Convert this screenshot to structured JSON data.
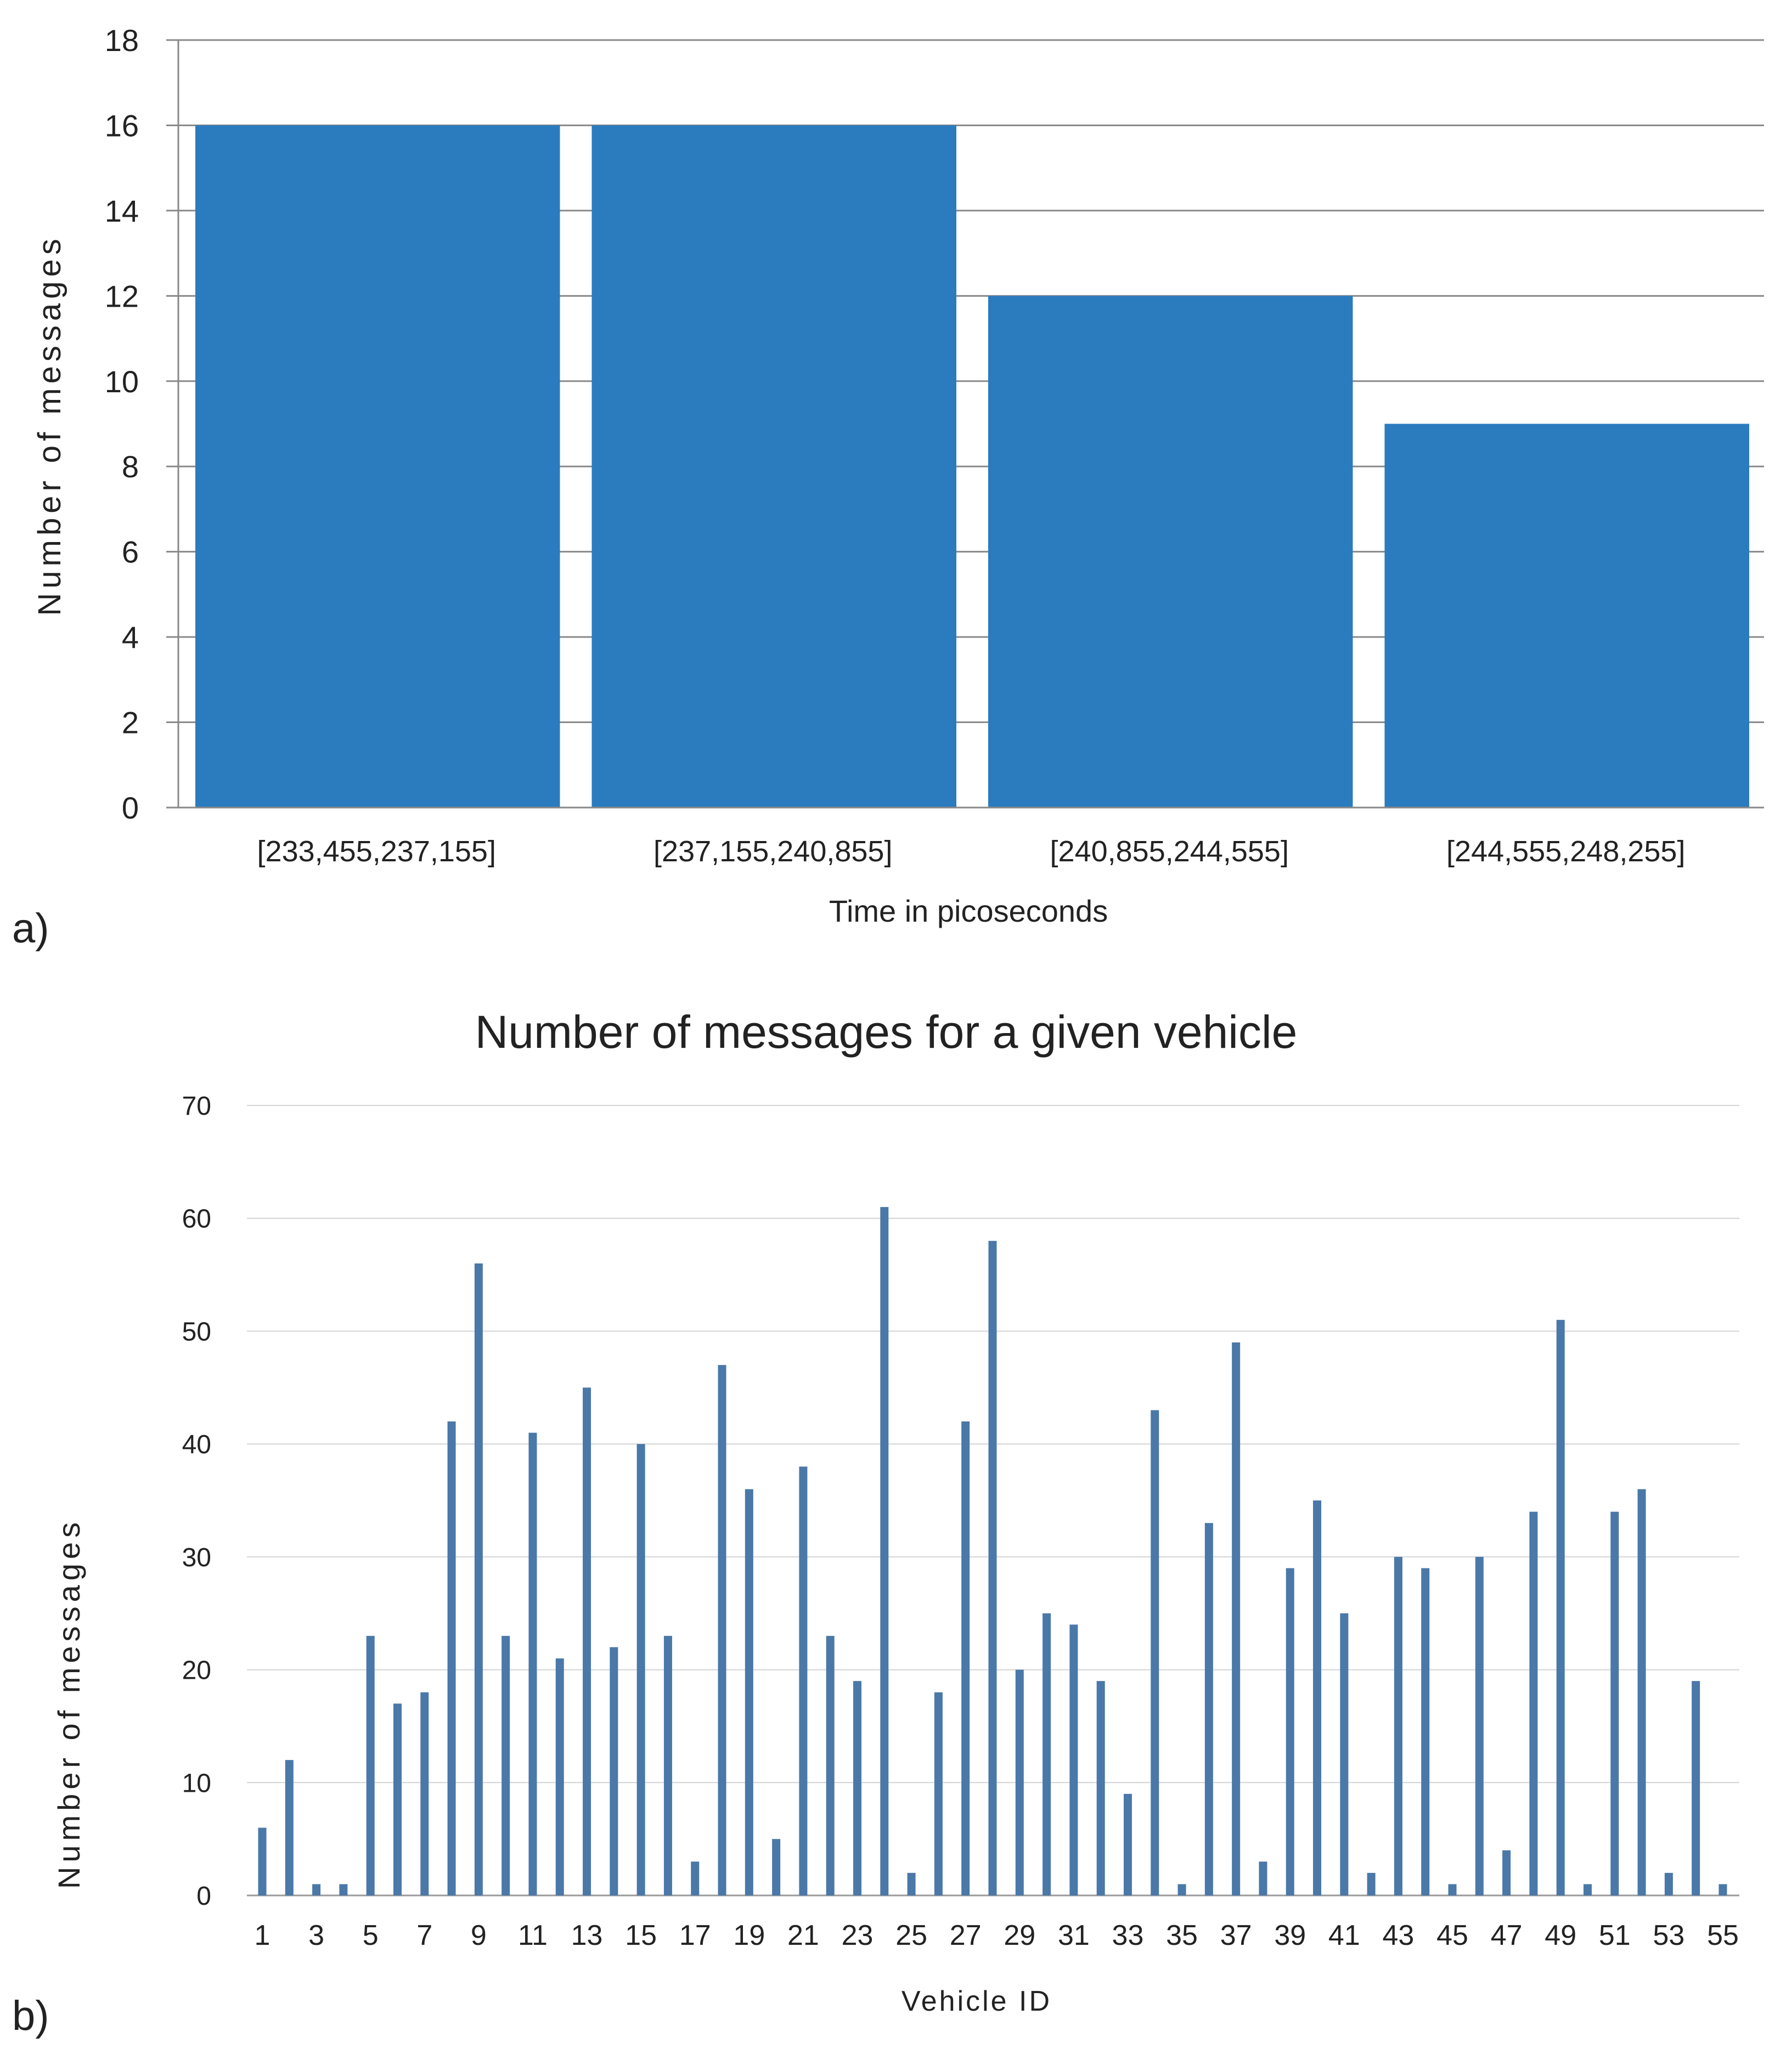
{
  "colors": {
    "bar_a": "#2b7bbf",
    "bar_b": "#4a78a8",
    "grid": "#d4d4d4",
    "axis": "#888888",
    "text": "#222222"
  },
  "panel_labels": {
    "a": "a)",
    "b": "b)"
  },
  "chart_data": [
    {
      "type": "bar",
      "title": "",
      "categories": [
        "[233,455,237,155]",
        "[237,155,240,855]",
        "[240,855,244,555]",
        "[244,555,248,255]"
      ],
      "values": [
        16,
        16,
        12,
        9
      ],
      "xlabel": "Time in picoseconds",
      "ylabel": "Number  of messages",
      "ylim": [
        0,
        18
      ],
      "yticks": [
        0,
        2,
        4,
        6,
        8,
        10,
        12,
        14,
        16,
        18
      ],
      "grid": true
    },
    {
      "type": "bar",
      "title": "Number of messages  for a given vehicle",
      "categories": [
        1,
        2,
        3,
        4,
        5,
        6,
        7,
        8,
        9,
        10,
        11,
        12,
        13,
        14,
        15,
        16,
        17,
        18,
        19,
        20,
        21,
        22,
        23,
        24,
        25,
        26,
        27,
        28,
        29,
        30,
        31,
        32,
        33,
        34,
        35,
        36,
        37,
        38,
        39,
        40,
        41,
        42,
        43,
        44,
        45,
        46,
        47,
        48,
        49,
        50,
        51,
        52,
        53,
        54,
        55
      ],
      "values": [
        6,
        12,
        1,
        1,
        23,
        17,
        18,
        42,
        56,
        23,
        41,
        21,
        45,
        22,
        40,
        23,
        3,
        47,
        36,
        5,
        38,
        23,
        19,
        61,
        2,
        18,
        42,
        58,
        20,
        25,
        24,
        19,
        9,
        43,
        1,
        33,
        49,
        3,
        29,
        35,
        25,
        2,
        30,
        29,
        1,
        30,
        4,
        34,
        51,
        1,
        34,
        36,
        2,
        19,
        1
      ],
      "xtick_labels": [
        "1",
        "3",
        "5",
        "7",
        "9",
        "11",
        "13",
        "15",
        "17",
        "19",
        "21",
        "23",
        "25",
        "27",
        "29",
        "31",
        "33",
        "35",
        "37",
        "39",
        "41",
        "43",
        "45",
        "47",
        "49",
        "51",
        "53",
        "55"
      ],
      "xlabel": "Vehicle ID",
      "ylabel": "Number of messages",
      "ylim": [
        0,
        70
      ],
      "yticks": [
        0,
        10,
        20,
        30,
        40,
        50,
        60,
        70
      ],
      "grid": true
    }
  ]
}
